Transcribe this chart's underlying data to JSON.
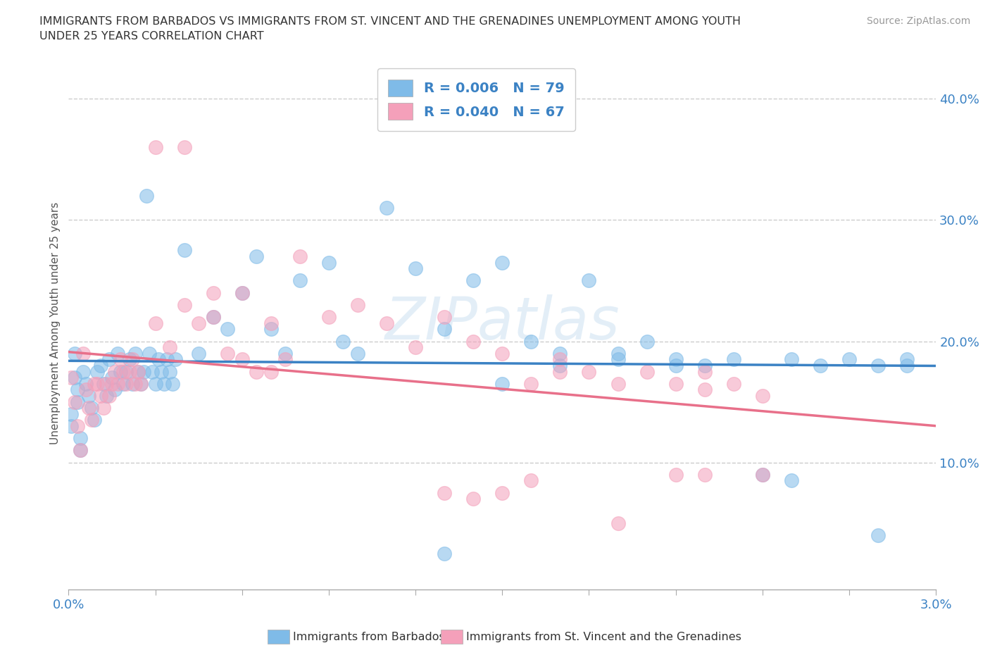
{
  "title_line1": "IMMIGRANTS FROM BARBADOS VS IMMIGRANTS FROM ST. VINCENT AND THE GRENADINES UNEMPLOYMENT AMONG YOUTH",
  "title_line2": "UNDER 25 YEARS CORRELATION CHART",
  "source": "Source: ZipAtlas.com",
  "ylabel_label": "Unemployment Among Youth under 25 years",
  "xlim": [
    0.0,
    0.03
  ],
  "ylim": [
    -0.005,
    0.435
  ],
  "ytick_vals": [
    0.1,
    0.2,
    0.3,
    0.4
  ],
  "ytick_labels": [
    "10.0%",
    "20.0%",
    "30.0%",
    "40.0%"
  ],
  "color_blue": "#7FBBE8",
  "color_pink": "#F4A0BA",
  "color_blue_line": "#3B82C4",
  "color_pink_line": "#E8708A",
  "color_blue_text": "#3B82C4",
  "grid_color": "#cccccc",
  "bg_color": "#ffffff",
  "watermark": "ZIPatlas",
  "barbados_x": [
    0.0002,
    0.0003,
    0.0001,
    0.0004,
    0.0002,
    0.0003,
    0.0001,
    0.0004,
    0.0005,
    0.0006,
    0.0007,
    0.0008,
    0.0009,
    0.001,
    0.0011,
    0.0012,
    0.0013,
    0.0014,
    0.0015,
    0.0016,
    0.0017,
    0.0018,
    0.0019,
    0.002,
    0.0021,
    0.0022,
    0.0023,
    0.0024,
    0.0025,
    0.0026,
    0.0027,
    0.0028,
    0.0029,
    0.003,
    0.0031,
    0.0032,
    0.0033,
    0.0034,
    0.0035,
    0.0036,
    0.0037,
    0.004,
    0.0045,
    0.005,
    0.0055,
    0.006,
    0.0065,
    0.007,
    0.0075,
    0.008,
    0.009,
    0.0095,
    0.01,
    0.011,
    0.012,
    0.013,
    0.014,
    0.015,
    0.016,
    0.017,
    0.018,
    0.019,
    0.02,
    0.021,
    0.022,
    0.024,
    0.025,
    0.025,
    0.026,
    0.027,
    0.028,
    0.029,
    0.013,
    0.015,
    0.017,
    0.019,
    0.021,
    0.023,
    0.028,
    0.029
  ],
  "barbados_y": [
    0.17,
    0.15,
    0.13,
    0.11,
    0.19,
    0.16,
    0.14,
    0.12,
    0.175,
    0.165,
    0.155,
    0.145,
    0.135,
    0.175,
    0.18,
    0.165,
    0.155,
    0.185,
    0.17,
    0.16,
    0.19,
    0.175,
    0.165,
    0.175,
    0.185,
    0.165,
    0.19,
    0.175,
    0.165,
    0.175,
    0.32,
    0.19,
    0.175,
    0.165,
    0.185,
    0.175,
    0.165,
    0.185,
    0.175,
    0.165,
    0.185,
    0.275,
    0.19,
    0.22,
    0.21,
    0.24,
    0.27,
    0.21,
    0.19,
    0.25,
    0.265,
    0.2,
    0.19,
    0.31,
    0.26,
    0.21,
    0.25,
    0.265,
    0.2,
    0.19,
    0.25,
    0.19,
    0.2,
    0.185,
    0.18,
    0.09,
    0.085,
    0.185,
    0.18,
    0.185,
    0.18,
    0.185,
    0.025,
    0.165,
    0.18,
    0.185,
    0.18,
    0.185,
    0.04,
    0.18
  ],
  "stvincent_x": [
    0.0001,
    0.0002,
    0.0003,
    0.0004,
    0.0005,
    0.0006,
    0.0007,
    0.0008,
    0.0009,
    0.001,
    0.0011,
    0.0012,
    0.0013,
    0.0014,
    0.0015,
    0.0016,
    0.0017,
    0.0018,
    0.0019,
    0.002,
    0.0021,
    0.0022,
    0.0023,
    0.0024,
    0.0025,
    0.003,
    0.0035,
    0.004,
    0.0045,
    0.005,
    0.0055,
    0.006,
    0.0065,
    0.007,
    0.0075,
    0.008,
    0.009,
    0.01,
    0.011,
    0.012,
    0.013,
    0.014,
    0.015,
    0.016,
    0.017,
    0.018,
    0.019,
    0.02,
    0.021,
    0.022,
    0.023,
    0.024,
    0.013,
    0.015,
    0.016,
    0.017,
    0.019,
    0.021,
    0.022,
    0.003,
    0.004,
    0.005,
    0.006,
    0.007,
    0.014,
    0.022,
    0.024
  ],
  "stvincent_y": [
    0.17,
    0.15,
    0.13,
    0.11,
    0.19,
    0.16,
    0.145,
    0.135,
    0.165,
    0.165,
    0.155,
    0.145,
    0.165,
    0.155,
    0.165,
    0.175,
    0.165,
    0.185,
    0.175,
    0.165,
    0.175,
    0.185,
    0.165,
    0.175,
    0.165,
    0.215,
    0.195,
    0.23,
    0.215,
    0.22,
    0.19,
    0.24,
    0.175,
    0.215,
    0.185,
    0.27,
    0.22,
    0.23,
    0.215,
    0.195,
    0.22,
    0.2,
    0.19,
    0.165,
    0.185,
    0.175,
    0.165,
    0.175,
    0.165,
    0.175,
    0.165,
    0.155,
    0.075,
    0.075,
    0.085,
    0.175,
    0.05,
    0.09,
    0.16,
    0.36,
    0.36,
    0.24,
    0.185,
    0.175,
    0.07,
    0.09,
    0.09
  ]
}
